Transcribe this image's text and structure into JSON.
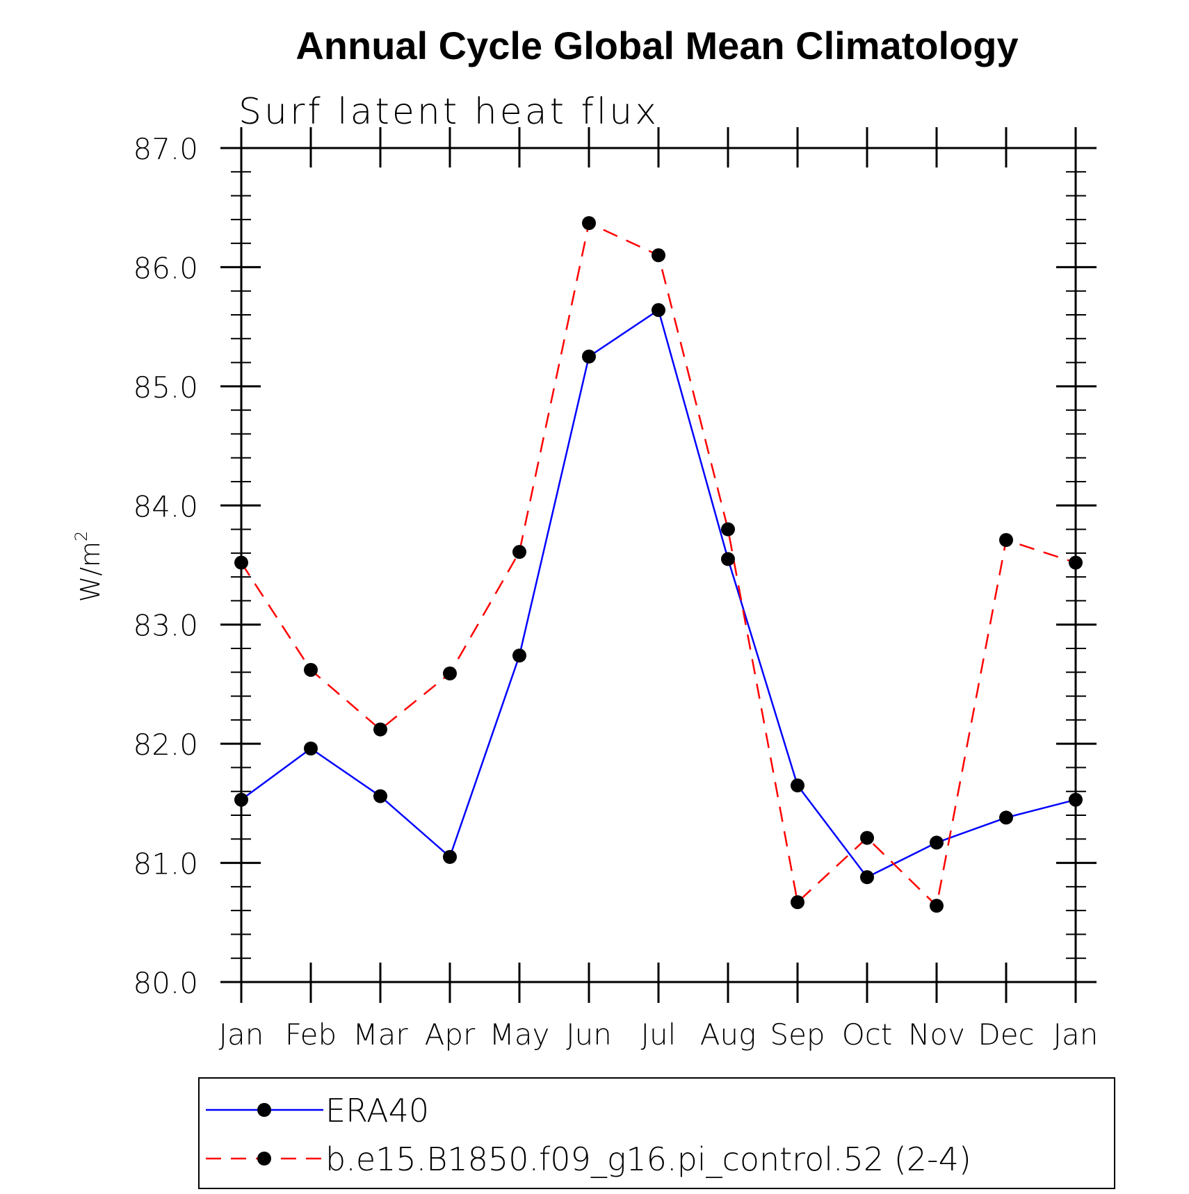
{
  "chart_data": {
    "type": "line",
    "title": "Annual Cycle Global Mean Climatology",
    "subtitle": "Surf latent heat flux",
    "xlabel": "",
    "ylabel": "W/m",
    "ylabel_sup": "2",
    "ylim": [
      80.0,
      87.0
    ],
    "yticks": [
      "80.0",
      "81.0",
      "82.0",
      "83.0",
      "84.0",
      "85.0",
      "86.0",
      "87.0"
    ],
    "categories": [
      "Jan",
      "Feb",
      "Mar",
      "Apr",
      "May",
      "Jun",
      "Jul",
      "Aug",
      "Sep",
      "Oct",
      "Nov",
      "Dec",
      "Jan"
    ],
    "series": [
      {
        "name": "ERA40",
        "color": "#0000ff",
        "dash": "solid",
        "values": [
          81.53,
          81.96,
          81.56,
          81.05,
          82.74,
          85.25,
          85.64,
          83.55,
          81.65,
          80.88,
          81.17,
          81.38,
          81.53
        ]
      },
      {
        "name": "b.e15.B1850.f09_g16.pi_control.52 (2-4)",
        "color": "#ff0000",
        "dash": "dashed",
        "values": [
          83.52,
          82.62,
          82.12,
          82.59,
          83.61,
          86.37,
          86.1,
          83.8,
          80.67,
          81.21,
          80.64,
          83.71,
          83.52
        ]
      }
    ],
    "marker_color": "#000000",
    "legend_position": "bottom"
  }
}
